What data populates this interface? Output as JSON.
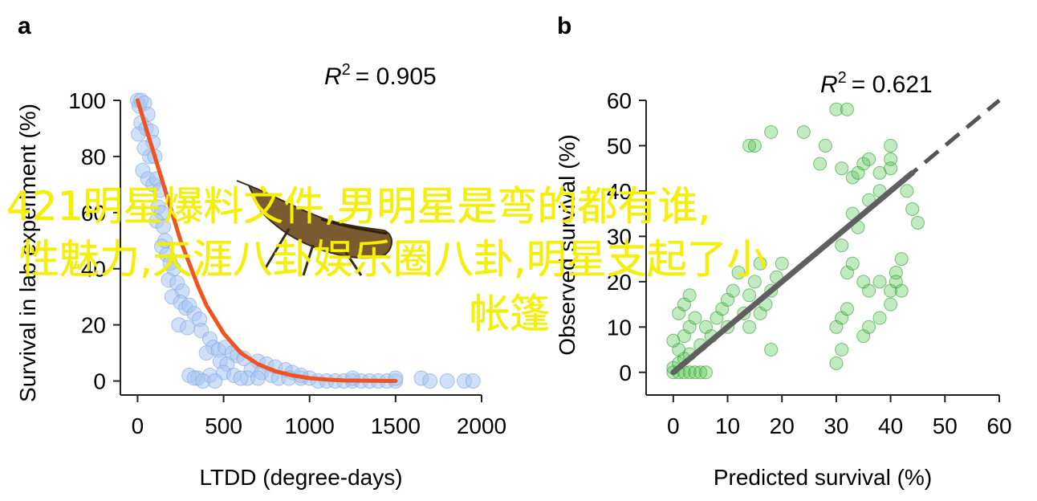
{
  "chart_data": [
    {
      "panel_label": "a",
      "type": "scatter",
      "r2_label": "R",
      "r2_sup": "2",
      "r2_value": "= 0.905",
      "xlabel": "LTDD (degree-days)",
      "ylabel": "Survival in lab experiment (%)",
      "xlim": [
        -100,
        2000
      ],
      "ylim": [
        -5,
        100
      ],
      "xticks": [
        0,
        500,
        1000,
        1500,
        2000
      ],
      "yticks": [
        0,
        20,
        40,
        60,
        80,
        100
      ],
      "point_color": "#a9c6f2",
      "point_edge": "#7aa4e0",
      "fit_color": "#f0531e",
      "points": [
        [
          0,
          100
        ],
        [
          10,
          98
        ],
        [
          20,
          100
        ],
        [
          40,
          99
        ],
        [
          60,
          95
        ],
        [
          20,
          92
        ],
        [
          5,
          88
        ],
        [
          50,
          90
        ],
        [
          80,
          89
        ],
        [
          90,
          85
        ],
        [
          70,
          80
        ],
        [
          40,
          83
        ],
        [
          100,
          80
        ],
        [
          30,
          75
        ],
        [
          60,
          72
        ],
        [
          90,
          70
        ],
        [
          110,
          72
        ],
        [
          130,
          68
        ],
        [
          120,
          62
        ],
        [
          140,
          60
        ],
        [
          110,
          57
        ],
        [
          150,
          55
        ],
        [
          160,
          50
        ],
        [
          140,
          48
        ],
        [
          170,
          45
        ],
        [
          190,
          42
        ],
        [
          210,
          40
        ],
        [
          180,
          36
        ],
        [
          230,
          35
        ],
        [
          260,
          32
        ],
        [
          200,
          30
        ],
        [
          250,
          28
        ],
        [
          280,
          26
        ],
        [
          300,
          27
        ],
        [
          330,
          24
        ],
        [
          360,
          22
        ],
        [
          240,
          20
        ],
        [
          290,
          19
        ],
        [
          370,
          18
        ],
        [
          420,
          15
        ],
        [
          440,
          12
        ],
        [
          400,
          10
        ],
        [
          470,
          11
        ],
        [
          510,
          12
        ],
        [
          550,
          10
        ],
        [
          580,
          9
        ],
        [
          620,
          8
        ],
        [
          480,
          7
        ],
        [
          520,
          6
        ],
        [
          700,
          7
        ],
        [
          750,
          6
        ],
        [
          800,
          5
        ],
        [
          860,
          4
        ],
        [
          660,
          4
        ],
        [
          720,
          3
        ],
        [
          900,
          3
        ],
        [
          300,
          2
        ],
        [
          350,
          1
        ],
        [
          420,
          2
        ],
        [
          500,
          3
        ],
        [
          560,
          2
        ],
        [
          640,
          1
        ],
        [
          700,
          1
        ],
        [
          780,
          2
        ],
        [
          820,
          1
        ],
        [
          880,
          1
        ],
        [
          950,
          1
        ],
        [
          1000,
          1
        ],
        [
          1050,
          0
        ],
        [
          1100,
          0
        ],
        [
          1150,
          0
        ],
        [
          1200,
          0
        ],
        [
          1250,
          0
        ],
        [
          1300,
          0
        ],
        [
          1350,
          0
        ],
        [
          1400,
          0
        ],
        [
          1450,
          0
        ],
        [
          1500,
          0
        ],
        [
          1650,
          1
        ],
        [
          1700,
          0
        ],
        [
          1800,
          0
        ],
        [
          1900,
          0
        ],
        [
          1950,
          0
        ],
        [
          330,
          1
        ],
        [
          380,
          0
        ],
        [
          450,
          0
        ],
        [
          600,
          1
        ],
        [
          950,
          2
        ],
        [
          1250,
          1
        ],
        [
          1500,
          1
        ]
      ],
      "fit": [
        [
          0,
          100
        ],
        [
          50,
          90
        ],
        [
          100,
          80
        ],
        [
          150,
          70
        ],
        [
          200,
          60
        ],
        [
          250,
          50
        ],
        [
          300,
          42
        ],
        [
          350,
          34
        ],
        [
          400,
          27
        ],
        [
          450,
          22
        ],
        [
          500,
          17
        ],
        [
          600,
          10
        ],
        [
          700,
          6
        ],
        [
          800,
          3.5
        ],
        [
          900,
          2
        ],
        [
          1000,
          1
        ],
        [
          1100,
          0.5
        ],
        [
          1200,
          0.2
        ],
        [
          1300,
          0.1
        ],
        [
          1500,
          0
        ]
      ]
    },
    {
      "panel_label": "b",
      "type": "scatter",
      "r2_label": "R",
      "r2_sup": "2",
      "r2_value": "= 0.621",
      "xlabel": "Predicted survival (%)",
      "ylabel": "Observed survival (%)",
      "xlim": [
        -5,
        60
      ],
      "ylim": [
        -5,
        60
      ],
      "xticks": [
        0,
        10,
        20,
        30,
        40,
        50,
        60
      ],
      "yticks": [
        0,
        10,
        20,
        30,
        40,
        50,
        60
      ],
      "point_color": "#4cc24c",
      "point_edge": "#2f9a2f",
      "fit_color": "#5f5f5f",
      "identity_color": "#555555",
      "points": [
        [
          0,
          0
        ],
        [
          1,
          0
        ],
        [
          2,
          0
        ],
        [
          3,
          0
        ],
        [
          4,
          0
        ],
        [
          5,
          0
        ],
        [
          6,
          0
        ],
        [
          0,
          1
        ],
        [
          1,
          2
        ],
        [
          2,
          3
        ],
        [
          3,
          4
        ],
        [
          1,
          5
        ],
        [
          0,
          7
        ],
        [
          2,
          8
        ],
        [
          3,
          10
        ],
        [
          1,
          13
        ],
        [
          2,
          15
        ],
        [
          3,
          17
        ],
        [
          4,
          12
        ],
        [
          5,
          6
        ],
        [
          6,
          10
        ],
        [
          7,
          8
        ],
        [
          8,
          12
        ],
        [
          9,
          14
        ],
        [
          10,
          10
        ],
        [
          10,
          16
        ],
        [
          11,
          18
        ],
        [
          12,
          22
        ],
        [
          13,
          13
        ],
        [
          14,
          10
        ],
        [
          14,
          17
        ],
        [
          15,
          20
        ],
        [
          16,
          13
        ],
        [
          17,
          15
        ],
        [
          16,
          24
        ],
        [
          18,
          18
        ],
        [
          19,
          21
        ],
        [
          20,
          24
        ],
        [
          18,
          5
        ],
        [
          14,
          50
        ],
        [
          15,
          50
        ],
        [
          18,
          53
        ],
        [
          24,
          53
        ],
        [
          27,
          46
        ],
        [
          28,
          50
        ],
        [
          30,
          58
        ],
        [
          31,
          45
        ],
        [
          32,
          58
        ],
        [
          33,
          43
        ],
        [
          34,
          44
        ],
        [
          35,
          46
        ],
        [
          36,
          47
        ],
        [
          38,
          44
        ],
        [
          40,
          50
        ],
        [
          40,
          47
        ],
        [
          40,
          45
        ],
        [
          31,
          28
        ],
        [
          32,
          22
        ],
        [
          33,
          24
        ],
        [
          35,
          20
        ],
        [
          36,
          18
        ],
        [
          38,
          20
        ],
        [
          40,
          18
        ],
        [
          41,
          22
        ],
        [
          42,
          25
        ],
        [
          43,
          40
        ],
        [
          44,
          36
        ],
        [
          45,
          33
        ],
        [
          30,
          10
        ],
        [
          31,
          12
        ],
        [
          32,
          14
        ],
        [
          35,
          8
        ],
        [
          36,
          10
        ],
        [
          38,
          12
        ],
        [
          40,
          15
        ],
        [
          41,
          20
        ],
        [
          42,
          18
        ],
        [
          33,
          35
        ],
        [
          34,
          32
        ],
        [
          36,
          38
        ],
        [
          38,
          40
        ],
        [
          31,
          5
        ],
        [
          30,
          2
        ]
      ],
      "fit": [
        [
          0,
          0
        ],
        [
          44,
          44
        ]
      ],
      "identity": [
        [
          0,
          0
        ],
        [
          60,
          60
        ]
      ]
    }
  ],
  "overlay": {
    "line1": "421明星爆料文件,男明星是弯的都有谁,",
    "line2": "性魅力,天涯八卦娱乐圈八卦,明星支起了小",
    "line3": "帐篷"
  },
  "insect": {
    "icon": "insect-icon"
  }
}
